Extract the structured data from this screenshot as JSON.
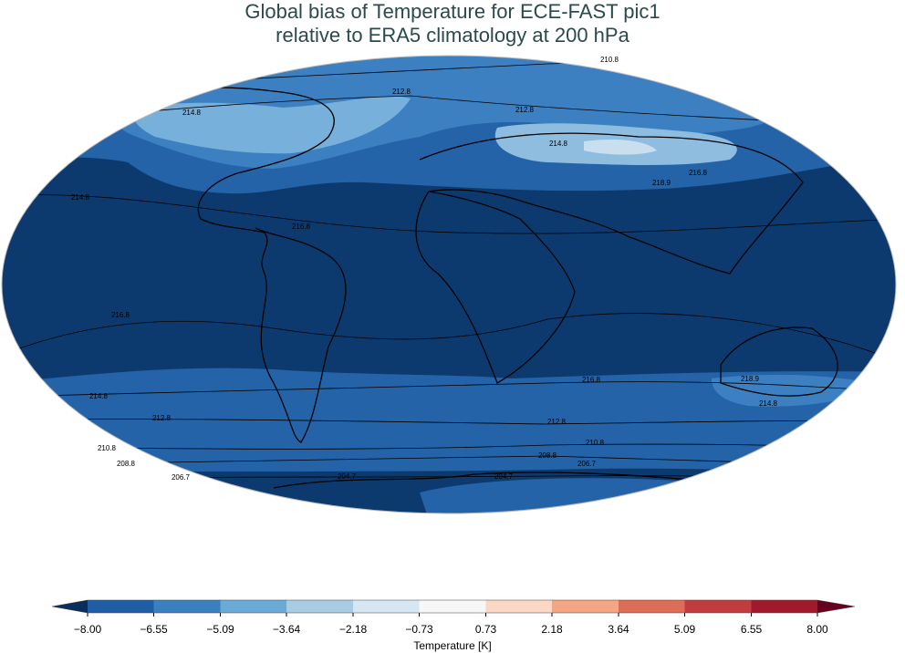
{
  "title": [
    "Global bias of Temperature for ECE-FAST pic1",
    "relative to ERA5 climatology at 200 hPa"
  ],
  "contour_labels": [
    "210.8",
    "212.8",
    "214.8",
    "212.8",
    "214.8",
    "216.8",
    "218.9",
    "214.8",
    "216.8",
    "216.8",
    "216.8",
    "218.9",
    "214.8",
    "214.8",
    "212.8",
    "212.8",
    "210.8",
    "210.8",
    "208.8",
    "208.8",
    "206.7",
    "206.7",
    "204.7",
    "204.7"
  ],
  "colorbar": {
    "label": "Temperature [K]",
    "ticks": [
      {
        "value": -8.0,
        "label": "−8.00"
      },
      {
        "value": -6.55,
        "label": "−6.55"
      },
      {
        "value": -5.09,
        "label": "−5.09"
      },
      {
        "value": -3.64,
        "label": "−3.64"
      },
      {
        "value": -2.18,
        "label": "−2.18"
      },
      {
        "value": -0.73,
        "label": "−0.73"
      },
      {
        "value": 0.73,
        "label": "0.73"
      },
      {
        "value": 2.18,
        "label": "2.18"
      },
      {
        "value": 3.64,
        "label": "3.64"
      },
      {
        "value": 5.09,
        "label": "5.09"
      },
      {
        "value": 6.55,
        "label": "6.55"
      },
      {
        "value": 8.0,
        "label": "8.00"
      }
    ],
    "under_color": "#0b2d5e",
    "over_color": "#67001f",
    "colors": [
      "#1f5ea6",
      "#3a7fc0",
      "#6aaad6",
      "#a7cce4",
      "#d6e6f2",
      "#f7f7f7",
      "#fbd7c4",
      "#f4a582",
      "#de6d56",
      "#c13c3c",
      "#a11a2b"
    ]
  }
}
